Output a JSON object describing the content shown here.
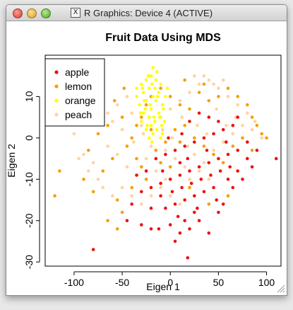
{
  "window": {
    "title": "R Graphics: Device 4 (ACTIVE)",
    "icon": "x11-icon"
  },
  "chart_data": {
    "type": "scatter",
    "title": "Fruit Data Using MDS",
    "xlabel": "Eigen 1",
    "ylabel": "Eigen 2",
    "xlim": [
      -130,
      115
    ],
    "ylim": [
      -31,
      20
    ],
    "xticks": [
      -100,
      -50,
      0,
      50,
      100
    ],
    "yticks": [
      -30,
      -20,
      -10,
      0,
      10
    ],
    "legend_position": "top-left",
    "colors": {
      "apple": "#ee1111",
      "lemon": "#f5a000",
      "orange": "#ffff00",
      "peach": "#ffd3a0"
    },
    "series": [
      {
        "name": "apple",
        "color": "#ee1111",
        "points": [
          [
            -80,
            -27
          ],
          [
            18,
            -29
          ],
          [
            -45,
            -20
          ],
          [
            -30,
            -21
          ],
          [
            -20,
            -22
          ],
          [
            -12,
            -22
          ],
          [
            0,
            -21
          ],
          [
            5,
            -25
          ],
          [
            10,
            -23
          ],
          [
            15,
            -20
          ],
          [
            20,
            -22
          ],
          [
            25,
            -18
          ],
          [
            30,
            -20
          ],
          [
            40,
            -23
          ],
          [
            50,
            -18
          ],
          [
            55,
            -16
          ],
          [
            -5,
            -17
          ],
          [
            5,
            -16
          ],
          [
            15,
            -15
          ],
          [
            25,
            -14
          ],
          [
            35,
            -13
          ],
          [
            45,
            -12
          ],
          [
            60,
            -10
          ],
          [
            70,
            -8
          ],
          [
            80,
            -5
          ],
          [
            90,
            -3
          ],
          [
            110,
            -5
          ],
          [
            -30,
            -13
          ],
          [
            -20,
            -12
          ],
          [
            -10,
            -11
          ],
          [
            0,
            -10
          ],
          [
            10,
            -9
          ],
          [
            20,
            -8
          ],
          [
            30,
            -7
          ],
          [
            40,
            -6
          ],
          [
            50,
            -5
          ],
          [
            60,
            -4
          ],
          [
            70,
            -3
          ],
          [
            80,
            -1
          ],
          [
            -15,
            -5
          ],
          [
            -5,
            -4
          ],
          [
            5,
            -3
          ],
          [
            15,
            -2
          ],
          [
            25,
            -1
          ],
          [
            35,
            0
          ],
          [
            45,
            1
          ],
          [
            55,
            2
          ],
          [
            65,
            3
          ],
          [
            30,
            6
          ],
          [
            40,
            5
          ],
          [
            20,
            4
          ],
          [
            10,
            -6
          ],
          [
            -8,
            -8
          ],
          [
            2,
            -13
          ],
          [
            12,
            -12
          ],
          [
            22,
            -11
          ],
          [
            32,
            -10
          ],
          [
            42,
            -9
          ],
          [
            52,
            -8
          ],
          [
            62,
            -7
          ],
          [
            -25,
            -8
          ],
          [
            -35,
            -9
          ],
          [
            -40,
            -16
          ],
          [
            8,
            -19
          ],
          [
            28,
            -17
          ],
          [
            48,
            -15
          ],
          [
            65,
            -12
          ],
          [
            75,
            -10
          ],
          [
            85,
            -7
          ],
          [
            18,
            -5
          ],
          [
            38,
            -3
          ],
          [
            58,
            -1
          ],
          [
            -2,
            0
          ],
          [
            12,
            1
          ],
          [
            50,
            4
          ],
          [
            70,
            5
          ],
          [
            -10,
            -14
          ],
          [
            -20,
            -17
          ]
        ]
      },
      {
        "name": "lemon",
        "color": "#f5a000",
        "points": [
          [
            -115,
            -8
          ],
          [
            -120,
            -14
          ],
          [
            -90,
            -10
          ],
          [
            -80,
            -13
          ],
          [
            -70,
            -8
          ],
          [
            -60,
            -5
          ],
          [
            -55,
            -15
          ],
          [
            -50,
            -18
          ],
          [
            -45,
            -2
          ],
          [
            -40,
            0
          ],
          [
            -35,
            3
          ],
          [
            -30,
            5
          ],
          [
            -25,
            8
          ],
          [
            -20,
            10
          ],
          [
            -10,
            12
          ],
          [
            0,
            10
          ],
          [
            10,
            8
          ],
          [
            20,
            7
          ],
          [
            30,
            11
          ],
          [
            40,
            9
          ],
          [
            50,
            10
          ],
          [
            60,
            12
          ],
          [
            70,
            10
          ],
          [
            80,
            8
          ],
          [
            85,
            5
          ],
          [
            90,
            3
          ],
          [
            95,
            1
          ],
          [
            -65,
            -20
          ],
          [
            -55,
            -22
          ],
          [
            -40,
            -12
          ],
          [
            -30,
            -7
          ],
          [
            -15,
            -3
          ],
          [
            -5,
            -1
          ],
          [
            5,
            2
          ],
          [
            15,
            3
          ],
          [
            25,
            0
          ],
          [
            35,
            -2
          ],
          [
            45,
            -4
          ],
          [
            55,
            -6
          ],
          [
            65,
            -2
          ],
          [
            75,
            0
          ],
          [
            85,
            -3
          ],
          [
            100,
            0
          ],
          [
            -85,
            -3
          ],
          [
            -75,
            1
          ],
          [
            -65,
            3
          ],
          [
            -50,
            5
          ],
          [
            -35,
            -5
          ],
          [
            -25,
            -10
          ],
          [
            -10,
            -6
          ],
          [
            0,
            -7
          ],
          [
            20,
            -12
          ],
          [
            40,
            -16
          ],
          [
            60,
            -14
          ],
          [
            15,
            14
          ],
          [
            35,
            13
          ],
          [
            -48,
            12
          ],
          [
            -58,
            9
          ],
          [
            10,
            -1
          ],
          [
            -20,
            2
          ]
        ]
      },
      {
        "name": "orange",
        "color": "#ffff00",
        "points": [
          [
            -18,
            17
          ],
          [
            -20,
            15
          ],
          [
            -25,
            14
          ],
          [
            -15,
            14
          ],
          [
            -30,
            13
          ],
          [
            -10,
            13
          ],
          [
            -22,
            12
          ],
          [
            -28,
            11
          ],
          [
            -12,
            11
          ],
          [
            -18,
            10
          ],
          [
            -35,
            10
          ],
          [
            -5,
            10
          ],
          [
            -25,
            9
          ],
          [
            -15,
            9
          ],
          [
            -32,
            8
          ],
          [
            -8,
            8
          ],
          [
            -20,
            7
          ],
          [
            -28,
            6
          ],
          [
            -12,
            6
          ],
          [
            -22,
            5
          ],
          [
            -16,
            4
          ],
          [
            -30,
            4
          ],
          [
            -6,
            4
          ],
          [
            -20,
            3
          ],
          [
            -25,
            2
          ],
          [
            -14,
            2
          ],
          [
            -18,
            1
          ],
          [
            -22,
            0
          ],
          [
            -10,
            0
          ],
          [
            -35,
            12
          ],
          [
            -3,
            12
          ],
          [
            -26,
            7
          ],
          [
            -17,
            5
          ],
          [
            -24,
            3
          ],
          [
            -9,
            3
          ],
          [
            -21,
            8
          ],
          [
            -13,
            10
          ],
          [
            -29,
            12
          ],
          [
            -7,
            7
          ],
          [
            -19,
            13
          ],
          [
            -23,
            15
          ],
          [
            -16,
            12
          ],
          [
            -11,
            5
          ],
          [
            -31,
            6
          ],
          [
            -14,
            16
          ],
          [
            -27,
            9
          ],
          [
            -19,
            -1
          ],
          [
            -8,
            1
          ]
        ]
      },
      {
        "name": "peach",
        "color": "#ffd3a0",
        "points": [
          [
            -100,
            1
          ],
          [
            -95,
            -5
          ],
          [
            -85,
            -8
          ],
          [
            -75,
            -10
          ],
          [
            -65,
            -2
          ],
          [
            -55,
            -4
          ],
          [
            -45,
            -7
          ],
          [
            -35,
            -9
          ],
          [
            -25,
            -5
          ],
          [
            -15,
            -8
          ],
          [
            -5,
            -3
          ],
          [
            5,
            -5
          ],
          [
            15,
            -7
          ],
          [
            25,
            -4
          ],
          [
            35,
            -6
          ],
          [
            45,
            -3
          ],
          [
            55,
            -1
          ],
          [
            65,
            1
          ],
          [
            75,
            3
          ],
          [
            85,
            2
          ],
          [
            95,
            0
          ],
          [
            -60,
            4
          ],
          [
            -50,
            2
          ],
          [
            -40,
            6
          ],
          [
            -30,
            3
          ],
          [
            -20,
            -2
          ],
          [
            -10,
            5
          ],
          [
            0,
            7
          ],
          [
            10,
            9
          ],
          [
            20,
            11
          ],
          [
            30,
            13
          ],
          [
            40,
            14
          ],
          [
            50,
            12
          ],
          [
            60,
            10
          ],
          [
            70,
            8
          ],
          [
            80,
            6
          ],
          [
            25,
            15
          ],
          [
            35,
            15
          ],
          [
            45,
            13
          ],
          [
            55,
            14
          ],
          [
            -70,
            -12
          ],
          [
            -60,
            -14
          ],
          [
            -50,
            -12
          ],
          [
            -40,
            -14
          ],
          [
            -30,
            -16
          ],
          [
            -20,
            -14
          ],
          [
            -10,
            -12
          ],
          [
            0,
            -14
          ],
          [
            10,
            -16
          ],
          [
            20,
            -10
          ],
          [
            30,
            -8
          ],
          [
            40,
            -10
          ],
          [
            -45,
            10
          ],
          [
            -55,
            8
          ],
          [
            -65,
            6
          ],
          [
            -80,
            -6
          ],
          [
            -90,
            -4
          ],
          [
            -5,
            -10
          ],
          [
            12,
            5
          ],
          [
            28,
            3
          ],
          [
            48,
            7
          ],
          [
            68,
            5
          ],
          [
            88,
            4
          ],
          [
            -38,
            -1
          ],
          [
            -28,
            1
          ],
          [
            -8,
            2
          ],
          [
            2,
            0
          ],
          [
            18,
            -2
          ],
          [
            38,
            1
          ],
          [
            58,
            3
          ]
        ]
      }
    ]
  }
}
